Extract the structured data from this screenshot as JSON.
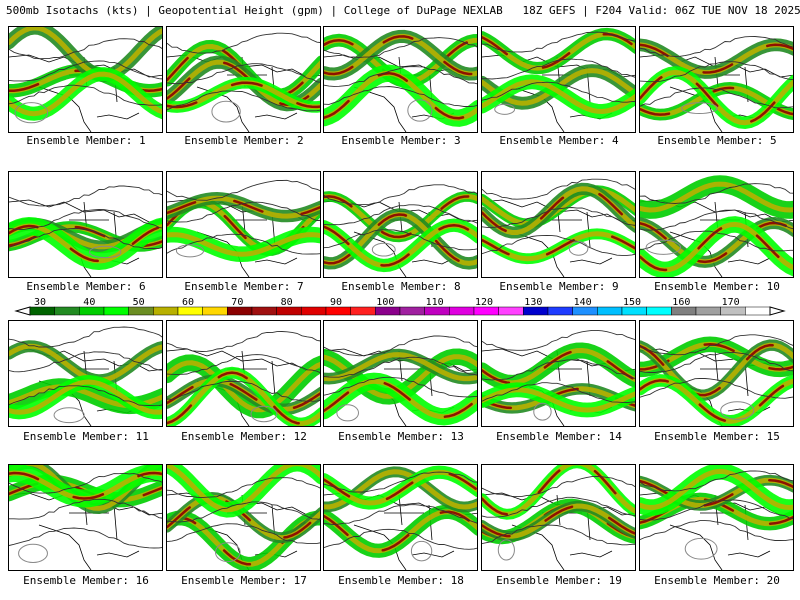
{
  "header": {
    "title": "500mb Isotachs (kts) | Geopotential Height (gpm) | College of DuPage NEXLAB   18Z GEFS | F204 Valid: 06Z TUE NOV 18 2025"
  },
  "members": [
    {
      "label": "Ensemble Member: 1"
    },
    {
      "label": "Ensemble Member: 2"
    },
    {
      "label": "Ensemble Member: 3"
    },
    {
      "label": "Ensemble Member: 4"
    },
    {
      "label": "Ensemble Member: 5"
    },
    {
      "label": "Ensemble Member: 6"
    },
    {
      "label": "Ensemble Member: 7"
    },
    {
      "label": "Ensemble Member: 8"
    },
    {
      "label": "Ensemble Member: 9"
    },
    {
      "label": "Ensemble Member: 10"
    },
    {
      "label": "Ensemble Member: 11"
    },
    {
      "label": "Ensemble Member: 12"
    },
    {
      "label": "Ensemble Member: 13"
    },
    {
      "label": "Ensemble Member: 14"
    },
    {
      "label": "Ensemble Member: 15"
    },
    {
      "label": "Ensemble Member: 16"
    },
    {
      "label": "Ensemble Member: 17"
    },
    {
      "label": "Ensemble Member: 18"
    },
    {
      "label": "Ensemble Member: 19"
    },
    {
      "label": "Ensemble Member: 20"
    }
  ],
  "colorbar": {
    "ticks": [
      "30",
      "40",
      "50",
      "60",
      "70",
      "80",
      "90",
      "100",
      "110",
      "120",
      "130",
      "140",
      "150",
      "160",
      "170"
    ],
    "colors": [
      "#006400",
      "#228b22",
      "#00cd00",
      "#00ff00",
      "#6b8e23",
      "#b8b000",
      "#ffff00",
      "#ffd700",
      "#8b0000",
      "#a01010",
      "#c00000",
      "#e00000",
      "#ff0000",
      "#ff2020",
      "#8b008b",
      "#a020a0",
      "#c000c0",
      "#e000e0",
      "#ff00ff",
      "#ff40ff",
      "#0000cd",
      "#1e3cff",
      "#1e90ff",
      "#00bfff",
      "#00e0ff",
      "#00ffff",
      "#808080",
      "#a0a0a0",
      "#c0c0c0",
      "#ffffff"
    ]
  }
}
